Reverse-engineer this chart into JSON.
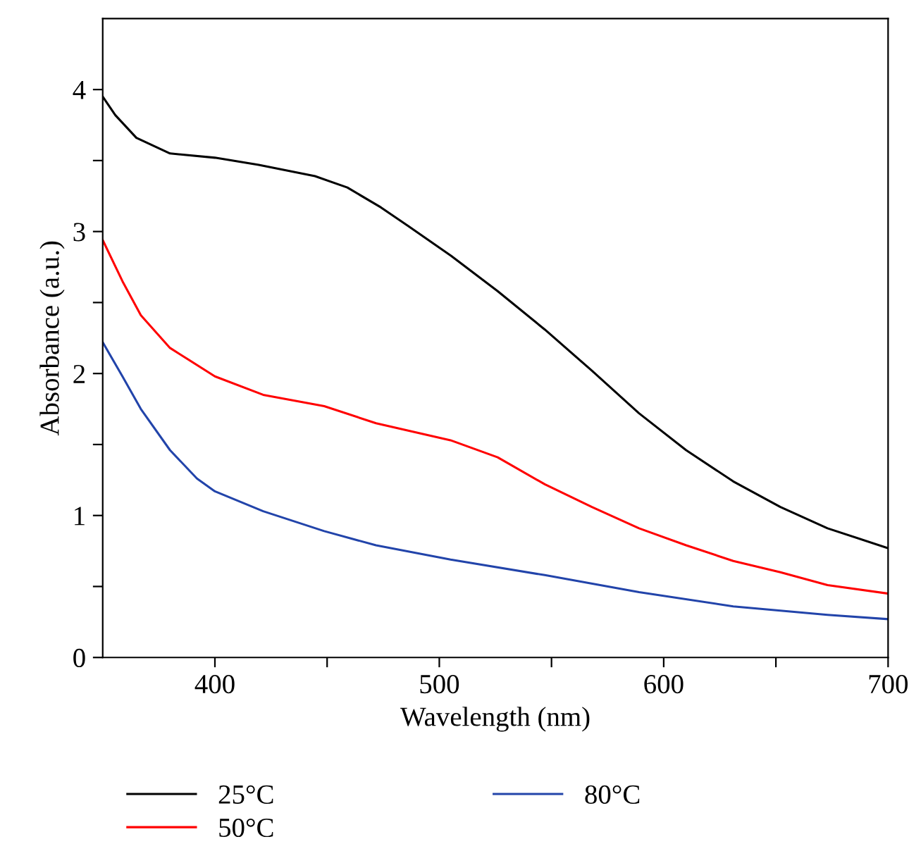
{
  "chart_data": {
    "type": "line",
    "xlabel": "Wavelength (nm)",
    "ylabel": "Absorbance (a.u.)",
    "xlim": [
      350,
      700
    ],
    "ylim": [
      0,
      4.5
    ],
    "xticks": [
      400,
      {
        "value": 450,
        "label": null
      },
      500,
      {
        "value": 550,
        "label": null
      },
      600,
      {
        "value": 650,
        "label": null
      },
      700
    ],
    "yticks": [
      0,
      {
        "value": 0.5,
        "label": null
      },
      1,
      {
        "value": 1.5,
        "label": null
      },
      2,
      {
        "value": 2.5,
        "label": null
      },
      3,
      {
        "value": 3.5,
        "label": null
      },
      4
    ],
    "grid": false,
    "legend": "bottom",
    "marker": "none",
    "line_style": "solid",
    "series": [
      {
        "name": "25°C",
        "color": "#000000",
        "x": [
          350,
          355.6,
          365,
          380,
          400,
          419.5,
          444.6,
          459,
          474,
          486,
          505.2,
          526,
          547,
          568,
          589,
          610,
          631,
          652,
          673,
          700
        ],
        "values": [
          3.95,
          3.82,
          3.66,
          3.55,
          3.52,
          3.47,
          3.39,
          3.31,
          3.17,
          3.04,
          2.83,
          2.58,
          2.31,
          2.02,
          1.72,
          1.46,
          1.24,
          1.06,
          0.91,
          0.77
        ]
      },
      {
        "name": "50°C",
        "color": "#ff0000",
        "x": [
          350,
          358.8,
          367,
          380,
          400,
          421.5,
          448.7,
          471.8,
          505,
          526,
          547,
          568,
          589,
          610,
          631,
          652,
          673,
          700
        ],
        "values": [
          2.94,
          2.65,
          2.41,
          2.18,
          1.98,
          1.85,
          1.77,
          1.65,
          1.53,
          1.41,
          1.22,
          1.06,
          0.91,
          0.79,
          0.68,
          0.6,
          0.51,
          0.45
        ]
      },
      {
        "name": "80°C",
        "color": "#2244aa",
        "x": [
          350,
          358.8,
          367,
          380,
          392,
          400,
          421.5,
          448.7,
          471.8,
          505,
          547,
          589,
          631,
          673,
          700
        ],
        "values": [
          2.22,
          1.98,
          1.75,
          1.46,
          1.26,
          1.17,
          1.03,
          0.89,
          0.79,
          0.69,
          0.58,
          0.46,
          0.36,
          0.3,
          0.27
        ]
      }
    ]
  }
}
